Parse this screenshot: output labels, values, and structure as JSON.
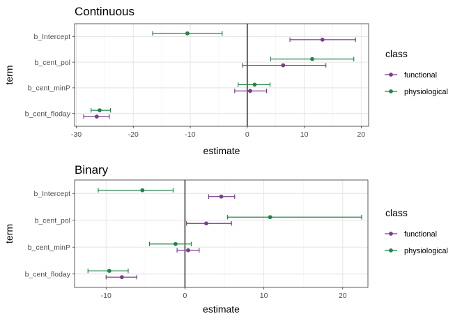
{
  "colors": {
    "functional": "#7B3A8C",
    "physiological": "#1E8449"
  },
  "chart_data": [
    {
      "type": "errorbar",
      "title": "Continuous",
      "xlabel": "estimate",
      "ylabel": "term",
      "xlim": [
        -30.3,
        21.3
      ],
      "xticks": [
        -30,
        -20,
        -10,
        0,
        10,
        20
      ],
      "xtick_labels": [
        "-30",
        "-20",
        "-10",
        "0",
        "10",
        "20"
      ],
      "categories": [
        "b_Intercept",
        "b_cent_pol",
        "b_cent_minP",
        "b_cent_floday"
      ],
      "legend": {
        "title": "class",
        "position": "right",
        "entries": [
          "functional",
          "physiological"
        ]
      },
      "series": [
        {
          "name": "functional",
          "values": [
            13.2,
            6.3,
            0.5,
            -26.4
          ],
          "lower": [
            7.5,
            -0.8,
            -2.2,
            -28.7
          ],
          "upper": [
            19.0,
            13.8,
            3.4,
            -24.2
          ]
        },
        {
          "name": "physiological",
          "values": [
            -10.5,
            11.4,
            1.3,
            -25.9
          ],
          "lower": [
            -16.6,
            4.1,
            -1.6,
            -27.4
          ],
          "upper": [
            -4.4,
            18.7,
            4.0,
            -24.0
          ]
        }
      ]
    },
    {
      "type": "errorbar",
      "title": "Binary",
      "xlabel": "estimate",
      "ylabel": "term",
      "xlim": [
        -14.0,
        23.2
      ],
      "xticks": [
        -10,
        0,
        10,
        20
      ],
      "xtick_labels": [
        "-10",
        "0",
        "10",
        "20"
      ],
      "categories": [
        "b_Intercept",
        "b_cent_pol",
        "b_cent_minP",
        "b_cent_floday"
      ],
      "legend": {
        "title": "class",
        "position": "right",
        "entries": [
          "functional",
          "physiological"
        ]
      },
      "series": [
        {
          "name": "functional",
          "values": [
            4.6,
            2.7,
            0.4,
            -8.0
          ],
          "lower": [
            3.0,
            0.2,
            -1.0,
            -10.0
          ],
          "upper": [
            6.3,
            5.9,
            1.8,
            -6.1
          ]
        },
        {
          "name": "physiological",
          "values": [
            -5.4,
            10.8,
            -1.2,
            -9.6
          ],
          "lower": [
            -11.0,
            5.4,
            -4.5,
            -12.3
          ],
          "upper": [
            -1.5,
            22.4,
            0.8,
            -7.2
          ]
        }
      ]
    }
  ]
}
